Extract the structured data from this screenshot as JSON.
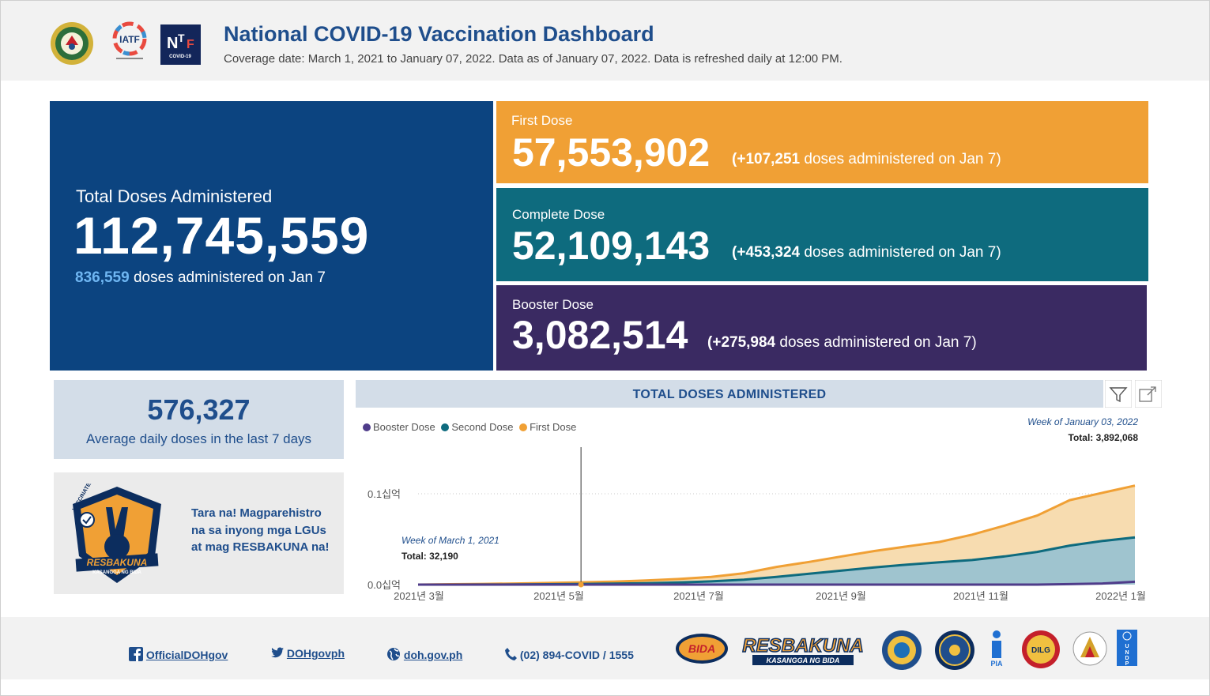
{
  "header": {
    "title": "National COVID-19 Vaccination Dashboard",
    "subtitle": "Coverage date: March 1, 2021 to January 07, 2022. Data as of January 07, 2022. Data is refreshed daily at 12:00 PM.",
    "logos": [
      "doh-seal-icon",
      "iatf-logo-icon",
      "ntf-covid19-logo-icon"
    ]
  },
  "total": {
    "label": "Total Doses Administered",
    "value": "112,745,559",
    "daily_value": "836,559",
    "daily_text": " doses administered on Jan 7"
  },
  "doses": {
    "first": {
      "label": "First Dose",
      "value": "57,553,902",
      "inc_open": "(+",
      "inc_value": "107,251",
      "inc_text": " doses administered on Jan 7)",
      "color": "#f0a035"
    },
    "complete": {
      "label": "Complete Dose",
      "value": "52,109,143",
      "inc_open": "(+",
      "inc_value": "453,324",
      "inc_text": " doses administered on Jan 7)",
      "color": "#0e6b7e"
    },
    "booster": {
      "label": "Booster Dose",
      "value": "3,082,514",
      "inc_open": "(+",
      "inc_value": "275,984",
      "inc_text": " doses administered on Jan 7)",
      "color": "#3a2a62"
    }
  },
  "average": {
    "value": "576,327",
    "label": "Average daily doses in the last 7 days"
  },
  "promo": {
    "text": "Tara na! Magparehistro na sa inyong mga LGUs at mag RESBAKUNA na!",
    "badge_top": "VACCINATED BIDA",
    "badge_name": "RESBAKUNA",
    "badge_tag": "KASANGGA NG BIDA"
  },
  "chart_data": {
    "type": "area",
    "title": "TOTAL DOSES ADMINISTERED",
    "legend": [
      "Booster Dose",
      "Second Dose",
      "First Dose"
    ],
    "x_ticks": [
      "2021년 3월",
      "2021년 5월",
      "2021년 7월",
      "2021년 9월",
      "2021년 11월",
      "2022년 1월"
    ],
    "y_ticks": [
      "0.0십억",
      "0.1십억"
    ],
    "ylim": [
      0,
      0.11
    ],
    "x_weeks": [
      0,
      2,
      4,
      6,
      8,
      10,
      12,
      14,
      16,
      18,
      20,
      22,
      24,
      26,
      28,
      30,
      32,
      34,
      36,
      38,
      40,
      42,
      44
    ],
    "series": [
      {
        "name": "First Dose",
        "color": "#f0a035",
        "values": [
          0,
          0.0004,
          0.0008,
          0.0012,
          0.0018,
          0.0025,
          0.0033,
          0.0045,
          0.0062,
          0.0085,
          0.0125,
          0.0195,
          0.025,
          0.031,
          0.037,
          0.042,
          0.047,
          0.055,
          0.065,
          0.076,
          0.093,
          0.101,
          0.109
        ]
      },
      {
        "name": "Second Dose",
        "color": "#0e6b7e",
        "values": [
          0,
          0,
          0.0001,
          0.0002,
          0.0004,
          0.0007,
          0.0011,
          0.0016,
          0.0024,
          0.0036,
          0.0055,
          0.0085,
          0.012,
          0.0155,
          0.019,
          0.022,
          0.0245,
          0.027,
          0.031,
          0.036,
          0.043,
          0.048,
          0.052
        ]
      },
      {
        "name": "Booster Dose",
        "color": "#4f3c8a",
        "values": [
          0,
          0,
          0,
          0,
          0,
          0,
          0,
          0,
          0,
          0,
          0,
          0,
          0,
          0,
          0,
          0,
          0,
          0,
          0,
          0,
          0.0005,
          0.0012,
          0.0031
        ]
      }
    ],
    "annotation_start": {
      "label": "Week of March 1, 2021",
      "total": "Total: 32,190"
    },
    "annotation_end": {
      "label": "Week of January 03, 2022",
      "total": "Total: 3,892,068"
    }
  },
  "footer": {
    "facebook": "OfficialDOHgov",
    "twitter": "DOHgovph",
    "website": "doh.gov.ph",
    "phone": "(02) 894-COVID / 1555",
    "partner_logos": {
      "bida": "BIDA",
      "resbakuna": "RESBAKUNA",
      "resbakuna_tag": "KASANGGA NG BIDA",
      "pia": "PIA",
      "dilg": "DILG",
      "undp": [
        "U",
        "N",
        "D",
        "P"
      ]
    }
  }
}
